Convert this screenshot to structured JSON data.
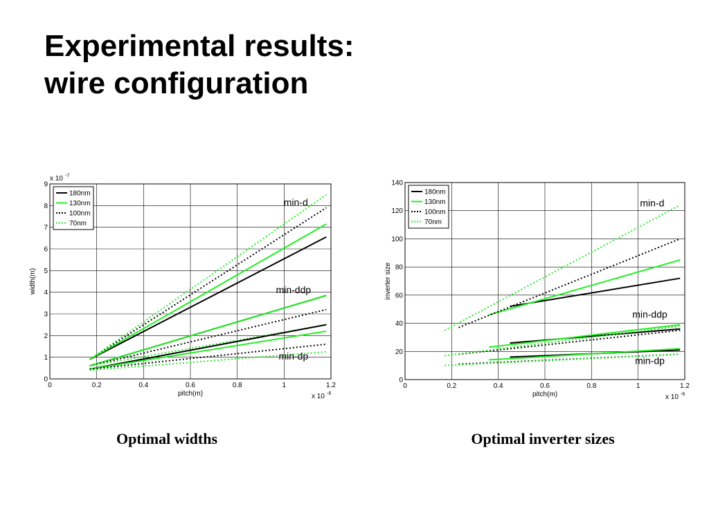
{
  "title": {
    "line1": "Experimental results:",
    "line2": "wire configuration"
  },
  "captions": {
    "left": "Optimal widths",
    "right": "Optimal inverter sizes"
  },
  "chart_data": [
    {
      "type": "line",
      "xlabel": "pitch(m)",
      "ylabel": "width(m)",
      "x_multiplier": "x 10",
      "x_exponent": "-6",
      "y_multiplier": "x 10",
      "y_exponent": "-7",
      "xlim": [
        0,
        1.2
      ],
      "ylim": [
        0,
        9
      ],
      "xticks": [
        "0",
        "0.2",
        "0.4",
        "0.6",
        "0.8",
        "1",
        "1.2"
      ],
      "yticks": [
        "0",
        "1",
        "2",
        "3",
        "4",
        "5",
        "6",
        "7",
        "8",
        "9"
      ],
      "grid": true,
      "legend": {
        "position": "top-left",
        "entries": [
          {
            "label": "180nm",
            "color": "#000000",
            "style": "solid"
          },
          {
            "label": "130nm",
            "color": "#22ee22",
            "style": "solid"
          },
          {
            "label": "100nm",
            "color": "#000000",
            "style": "dotted"
          },
          {
            "label": "70nm",
            "color": "#22ee22",
            "style": "dotted"
          }
        ]
      },
      "annotations": [
        {
          "text": "min-d",
          "x": 1.05,
          "y": 8.0
        },
        {
          "text": "min-ddp",
          "x": 1.04,
          "y": 3.95
        },
        {
          "text": "min-dp",
          "x": 1.04,
          "y": 0.9
        }
      ],
      "series": [
        {
          "name": "180nm",
          "group": "min-d",
          "color": "#000000",
          "style": "solid",
          "x": [
            0.17,
            1.18
          ],
          "y": [
            0.9,
            6.55
          ]
        },
        {
          "name": "130nm",
          "group": "min-d",
          "color": "#22ee22",
          "style": "solid",
          "x": [
            0.17,
            1.18
          ],
          "y": [
            0.9,
            7.15
          ]
        },
        {
          "name": "100nm",
          "group": "min-d",
          "color": "#000000",
          "style": "dotted",
          "x": [
            0.17,
            1.18
          ],
          "y": [
            0.9,
            7.9
          ]
        },
        {
          "name": "70nm",
          "group": "min-d",
          "color": "#22ee22",
          "style": "dotted",
          "x": [
            0.17,
            1.18
          ],
          "y": [
            0.9,
            8.5
          ]
        },
        {
          "name": "180nm",
          "group": "min-ddp",
          "color": "#000000",
          "style": "solid",
          "x": [
            0.17,
            1.18
          ],
          "y": [
            0.6,
            3.85
          ]
        },
        {
          "name": "130nm",
          "group": "min-ddp",
          "color": "#22ee22",
          "style": "solid",
          "x": [
            0.17,
            1.18
          ],
          "y": [
            0.6,
            3.85
          ]
        },
        {
          "name": "100nm",
          "group": "min-ddp",
          "color": "#000000",
          "style": "dotted",
          "x": [
            0.17,
            1.18
          ],
          "y": [
            0.6,
            3.2
          ]
        },
        {
          "name": "70nm",
          "group": "min-ddp",
          "color": "#22ee22",
          "style": "dotted",
          "x": [
            0.17,
            1.18
          ],
          "y": [
            0.6,
            2.5
          ]
        },
        {
          "name": "180nm",
          "group": "min-dp",
          "color": "#000000",
          "style": "solid",
          "x": [
            0.17,
            1.18
          ],
          "y": [
            0.45,
            2.5
          ]
        },
        {
          "name": "130nm",
          "group": "min-dp",
          "color": "#22ee22",
          "style": "solid",
          "x": [
            0.17,
            1.18
          ],
          "y": [
            0.45,
            2.2
          ]
        },
        {
          "name": "100nm",
          "group": "min-dp",
          "color": "#000000",
          "style": "dotted",
          "x": [
            0.17,
            1.18
          ],
          "y": [
            0.45,
            1.6
          ]
        },
        {
          "name": "70nm",
          "group": "min-dp",
          "color": "#22ee22",
          "style": "dotted",
          "x": [
            0.17,
            1.18
          ],
          "y": [
            0.4,
            1.25
          ]
        }
      ]
    },
    {
      "type": "line",
      "xlabel": "pitch(m)",
      "ylabel": "inverter size",
      "x_multiplier": "x 10",
      "x_exponent": "-6",
      "xlim": [
        0,
        1.2
      ],
      "ylim": [
        0,
        140
      ],
      "xticks": [
        "0",
        "0.2",
        "0.4",
        "0.6",
        "0.8",
        "1",
        "1.2"
      ],
      "yticks": [
        "0",
        "20",
        "40",
        "60",
        "80",
        "100",
        "120",
        "140"
      ],
      "grid": true,
      "legend": {
        "position": "top-left",
        "entries": [
          {
            "label": "180nm",
            "color": "#000000",
            "style": "solid"
          },
          {
            "label": "130nm",
            "color": "#22ee22",
            "style": "solid"
          },
          {
            "label": "100nm",
            "color": "#000000",
            "style": "dotted"
          },
          {
            "label": "70nm",
            "color": "#22ee22",
            "style": "dotted"
          }
        ]
      },
      "annotations": [
        {
          "text": "min-d",
          "x": 1.06,
          "y": 123
        },
        {
          "text": "min-ddp",
          "x": 1.05,
          "y": 44
        },
        {
          "text": "min-dp",
          "x": 1.05,
          "y": 11
        }
      ],
      "series": [
        {
          "name": "180nm",
          "group": "min-d",
          "color": "#000000",
          "style": "solid",
          "x": [
            0.45,
            1.18
          ],
          "y": [
            52,
            72
          ]
        },
        {
          "name": "130nm",
          "group": "min-d",
          "color": "#22ee22",
          "style": "solid",
          "x": [
            0.36,
            1.18
          ],
          "y": [
            46,
            85
          ]
        },
        {
          "name": "100nm",
          "group": "min-d",
          "color": "#000000",
          "style": "dotted",
          "x": [
            0.23,
            1.18
          ],
          "y": [
            37,
            100
          ]
        },
        {
          "name": "70nm",
          "group": "min-d",
          "color": "#22ee22",
          "style": "dotted",
          "x": [
            0.17,
            1.18
          ],
          "y": [
            35,
            124
          ]
        },
        {
          "name": "180nm",
          "group": "min-ddp",
          "color": "#000000",
          "style": "solid",
          "x": [
            0.45,
            1.18
          ],
          "y": [
            26,
            36
          ]
        },
        {
          "name": "130nm",
          "group": "min-ddp",
          "color": "#22ee22",
          "style": "solid",
          "x": [
            0.36,
            1.18
          ],
          "y": [
            23,
            39
          ]
        },
        {
          "name": "100nm",
          "group": "min-ddp",
          "color": "#000000",
          "style": "dotted",
          "x": [
            0.23,
            1.18
          ],
          "y": [
            18,
            35
          ]
        },
        {
          "name": "70nm",
          "group": "min-ddp",
          "color": "#22ee22",
          "style": "dotted",
          "x": [
            0.17,
            1.18
          ],
          "y": [
            17,
            38
          ]
        },
        {
          "name": "180nm",
          "group": "min-dp",
          "color": "#000000",
          "style": "solid",
          "x": [
            0.45,
            1.18
          ],
          "y": [
            16,
            21
          ]
        },
        {
          "name": "130nm",
          "group": "min-dp",
          "color": "#22ee22",
          "style": "solid",
          "x": [
            0.36,
            1.18
          ],
          "y": [
            14,
            22
          ]
        },
        {
          "name": "100nm",
          "group": "min-dp",
          "color": "#000000",
          "style": "dotted",
          "x": [
            0.23,
            1.18
          ],
          "y": [
            11,
            18
          ]
        },
        {
          "name": "70nm",
          "group": "min-dp",
          "color": "#22ee22",
          "style": "dotted",
          "x": [
            0.17,
            1.18
          ],
          "y": [
            10,
            18
          ]
        }
      ]
    }
  ]
}
